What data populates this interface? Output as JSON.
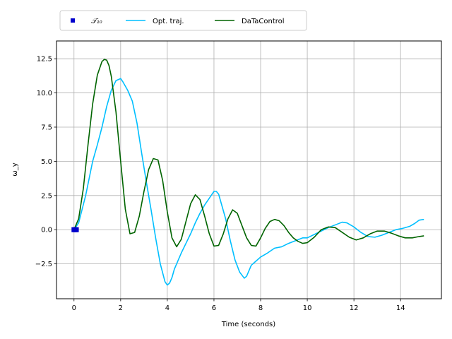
{
  "chart_data": {
    "type": "line",
    "xlabel": "Time (seconds)",
    "ylabel": "ω_y",
    "xlim": [
      -0.75,
      15.75
    ],
    "ylim": [
      -5.05,
      13.8
    ],
    "xticks": [
      0,
      2,
      4,
      6,
      8,
      10,
      12,
      14
    ],
    "yticks": [
      -2.5,
      0.0,
      2.5,
      5.0,
      7.5,
      10.0,
      12.5
    ],
    "ytick_labels": [
      "−2.5",
      "0.0",
      "2.5",
      "5.0",
      "7.5",
      "10.0",
      "12.5"
    ],
    "grid": true,
    "legend_placement": "top-center",
    "series": [
      {
        "name": "𝒯₁₀",
        "kind": "marker",
        "color": "#0000cc",
        "x": [
          0.0,
          0.05,
          0.1
        ],
        "y": [
          0.0,
          0.0,
          0.0
        ]
      },
      {
        "name": "Opt. traj.",
        "kind": "line",
        "color": "#00bfff",
        "x": [
          0,
          0.2,
          0.5,
          0.8,
          1.0,
          1.2,
          1.4,
          1.6,
          1.8,
          2.0,
          2.1,
          2.3,
          2.5,
          2.7,
          2.9,
          3.1,
          3.3,
          3.5,
          3.7,
          3.9,
          4.0,
          4.1,
          4.2,
          4.3,
          4.4,
          4.6,
          4.8,
          5.0,
          5.2,
          5.4,
          5.6,
          5.8,
          6.0,
          6.1,
          6.2,
          6.3,
          6.5,
          6.7,
          6.9,
          7.1,
          7.3,
          7.4,
          7.5,
          7.6,
          7.8,
          8.0,
          8.3,
          8.6,
          8.9,
          9.2,
          9.5,
          9.8,
          10.0,
          10.3,
          10.6,
          10.9,
          11.2,
          11.5,
          11.7,
          12.0,
          12.3,
          12.6,
          12.9,
          13.2,
          13.5,
          13.8,
          14.1,
          14.4,
          14.6,
          14.8,
          15.0
        ],
        "y": [
          0,
          0.5,
          2.5,
          5.0,
          6.2,
          7.5,
          9.0,
          10.2,
          10.9,
          11.05,
          10.8,
          10.2,
          9.4,
          7.8,
          5.6,
          3.5,
          1.5,
          -0.6,
          -2.5,
          -3.8,
          -4.05,
          -3.9,
          -3.5,
          -2.9,
          -2.5,
          -1.7,
          -1.0,
          -0.3,
          0.5,
          1.2,
          1.8,
          2.3,
          2.8,
          2.8,
          2.6,
          2.0,
          0.8,
          -0.8,
          -2.2,
          -3.1,
          -3.55,
          -3.4,
          -3.0,
          -2.6,
          -2.3,
          -2.0,
          -1.7,
          -1.35,
          -1.25,
          -1.0,
          -0.8,
          -0.6,
          -0.6,
          -0.35,
          -0.1,
          0.15,
          0.35,
          0.55,
          0.5,
          0.2,
          -0.2,
          -0.5,
          -0.55,
          -0.4,
          -0.2,
          0.0,
          0.1,
          0.25,
          0.45,
          0.7,
          0.75
        ]
      },
      {
        "name": "DaTaControl",
        "kind": "line",
        "color": "#006400",
        "x": [
          0,
          0.2,
          0.4,
          0.6,
          0.8,
          1.0,
          1.2,
          1.3,
          1.4,
          1.5,
          1.6,
          1.8,
          2.0,
          2.2,
          2.4,
          2.6,
          2.8,
          3.0,
          3.2,
          3.4,
          3.6,
          3.8,
          4.0,
          4.2,
          4.4,
          4.6,
          4.8,
          5.0,
          5.2,
          5.4,
          5.6,
          5.8,
          6.0,
          6.2,
          6.4,
          6.6,
          6.8,
          7.0,
          7.2,
          7.4,
          7.6,
          7.8,
          8.0,
          8.2,
          8.4,
          8.6,
          8.8,
          9.0,
          9.2,
          9.4,
          9.6,
          9.8,
          10.0,
          10.3,
          10.6,
          10.9,
          11.2,
          11.5,
          11.8,
          12.1,
          12.4,
          12.7,
          13.0,
          13.3,
          13.6,
          13.9,
          14.2,
          14.5,
          14.8,
          15.0
        ],
        "y": [
          0,
          0.8,
          3.0,
          6.2,
          9.2,
          11.3,
          12.3,
          12.45,
          12.4,
          12.0,
          11.2,
          8.6,
          5.0,
          1.5,
          -0.3,
          -0.2,
          1.0,
          2.8,
          4.4,
          5.2,
          5.1,
          3.6,
          1.3,
          -0.6,
          -1.25,
          -0.7,
          0.6,
          1.9,
          2.55,
          2.2,
          1.0,
          -0.3,
          -1.2,
          -1.15,
          -0.3,
          0.8,
          1.45,
          1.2,
          0.3,
          -0.6,
          -1.15,
          -1.2,
          -0.6,
          0.1,
          0.6,
          0.75,
          0.65,
          0.3,
          -0.2,
          -0.6,
          -0.85,
          -1.0,
          -0.95,
          -0.55,
          0.0,
          0.2,
          0.15,
          -0.2,
          -0.55,
          -0.75,
          -0.6,
          -0.3,
          -0.1,
          -0.1,
          -0.25,
          -0.45,
          -0.6,
          -0.6,
          -0.5,
          -0.45
        ]
      }
    ]
  }
}
